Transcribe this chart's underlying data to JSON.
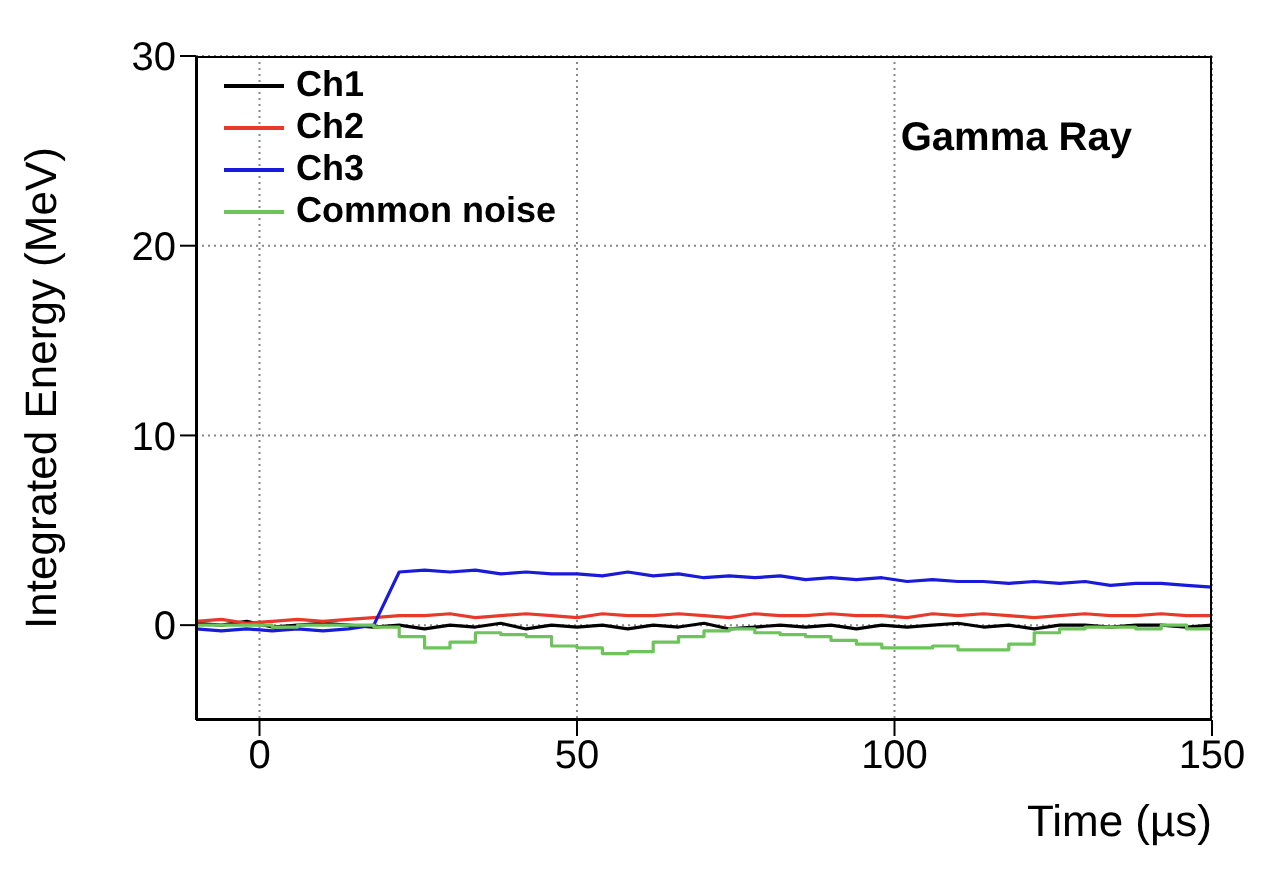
{
  "chart_data": {
    "type": "line",
    "xlabel": "Time (µs)",
    "ylabel": "Integrated Energy (MeV)",
    "annotations": [
      "Gamma Ray"
    ],
    "x": [
      -10,
      -6,
      -2,
      2,
      6,
      10,
      14,
      18,
      22,
      26,
      30,
      34,
      38,
      42,
      46,
      50,
      54,
      58,
      62,
      66,
      70,
      74,
      78,
      82,
      86,
      90,
      94,
      98,
      102,
      106,
      110,
      114,
      118,
      122,
      126,
      130,
      134,
      138,
      142,
      146,
      150
    ],
    "series": [
      {
        "name": "Ch1",
        "color": "#000000",
        "values": [
          0.1,
          0,
          0.2,
          -0.1,
          0,
          0.1,
          0,
          -0.1,
          0,
          -0.2,
          0,
          -0.1,
          0.1,
          -0.2,
          0,
          -0.1,
          0,
          -0.2,
          0,
          -0.1,
          0.1,
          -0.2,
          -0.1,
          0,
          -0.1,
          0,
          -0.2,
          0,
          -0.1,
          0,
          0.1,
          -0.1,
          0,
          -0.2,
          0,
          0,
          -0.1,
          0,
          0,
          -0.1,
          0
        ]
      },
      {
        "name": "Ch2",
        "color": "#e8392a",
        "values": [
          0.2,
          0.3,
          0.1,
          0.2,
          0.3,
          0.2,
          0.3,
          0.4,
          0.5,
          0.5,
          0.6,
          0.4,
          0.5,
          0.6,
          0.5,
          0.4,
          0.6,
          0.5,
          0.5,
          0.6,
          0.5,
          0.4,
          0.6,
          0.5,
          0.5,
          0.6,
          0.5,
          0.5,
          0.4,
          0.6,
          0.5,
          0.6,
          0.5,
          0.4,
          0.5,
          0.6,
          0.5,
          0.5,
          0.6,
          0.5,
          0.5
        ]
      },
      {
        "name": "Ch3",
        "color": "#1a1adb",
        "values": [
          -0.2,
          -0.3,
          -0.2,
          -0.3,
          -0.2,
          -0.3,
          -0.2,
          0.0,
          2.8,
          2.9,
          2.8,
          2.9,
          2.7,
          2.8,
          2.7,
          2.7,
          2.6,
          2.8,
          2.6,
          2.7,
          2.5,
          2.6,
          2.5,
          2.6,
          2.4,
          2.5,
          2.4,
          2.5,
          2.3,
          2.4,
          2.3,
          2.3,
          2.2,
          2.3,
          2.2,
          2.3,
          2.1,
          2.2,
          2.2,
          2.1,
          2.0
        ]
      },
      {
        "name": "Common noise",
        "type": "step",
        "color": "#6cc45a",
        "values": [
          0,
          0,
          0,
          -0.1,
          0,
          0,
          0,
          -0.1,
          -0.6,
          -1.2,
          -0.9,
          -0.4,
          -0.5,
          -0.6,
          -1.1,
          -1.2,
          -1.5,
          -1.4,
          -0.9,
          -0.6,
          -0.3,
          -0.2,
          -0.4,
          -0.5,
          -0.6,
          -0.8,
          -1.0,
          -1.2,
          -1.2,
          -1.1,
          -1.3,
          -1.3,
          -1.0,
          -0.4,
          -0.2,
          -0.1,
          -0.1,
          -0.2,
          0,
          -0.2,
          -0.3
        ]
      }
    ],
    "xlim": [
      -10,
      150
    ],
    "xticks": [
      0,
      50,
      100,
      150
    ],
    "ylim": [
      -5,
      30
    ],
    "yticks": [
      0,
      10,
      20,
      30
    ],
    "grid": true,
    "legend": "top left",
    "marker": "none",
    "line_style": "solid"
  }
}
